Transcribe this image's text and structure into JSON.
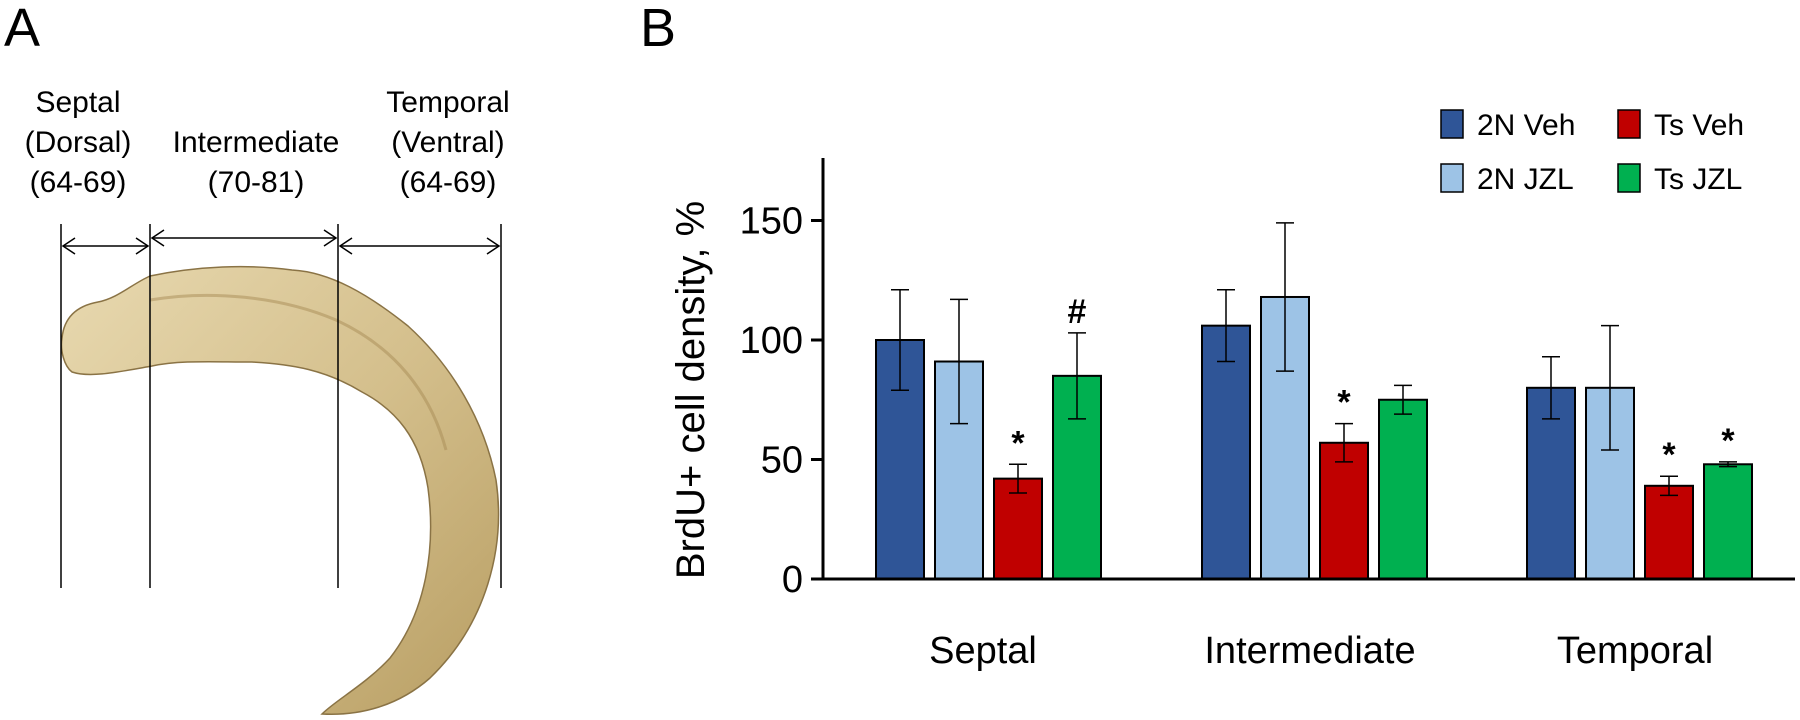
{
  "panel_a": {
    "letter": "A",
    "regions": [
      {
        "lines": [
          "Septal",
          "(Dorsal)",
          "(64-69)"
        ]
      },
      {
        "lines": [
          "Intermediate",
          "(70-81)"
        ]
      },
      {
        "lines": [
          "Temporal",
          "(Ventral)",
          "(64-69)"
        ]
      }
    ]
  },
  "panel_b": {
    "letter": "B"
  },
  "colors": {
    "2N Veh": "#2f5597",
    "2N JZL": "#9dc3e6",
    "Ts Veh": "#c00000",
    "Ts JZL": "#00b050",
    "hippocampus": "#d4c08f"
  },
  "chart_data": {
    "type": "bar",
    "title": "",
    "xlabel": "",
    "ylabel": "BrdU+ cell density, %",
    "ylim": [
      0,
      175
    ],
    "yticks": [
      0,
      50,
      100,
      150
    ],
    "grid": false,
    "legend_position": "top-right",
    "categories": [
      "Septal",
      "Intermediate",
      "Temporal"
    ],
    "series": [
      {
        "name": "2N Veh",
        "values": [
          100,
          106,
          80
        ],
        "errors": [
          21,
          15,
          13
        ],
        "annotations": [
          "",
          "",
          ""
        ]
      },
      {
        "name": "2N JZL",
        "values": [
          91,
          118,
          80
        ],
        "errors": [
          26,
          31,
          26
        ],
        "annotations": [
          "",
          "",
          ""
        ]
      },
      {
        "name": "Ts Veh",
        "values": [
          42,
          57,
          39
        ],
        "errors": [
          6,
          8,
          4
        ],
        "annotations": [
          "*",
          "*",
          "*"
        ]
      },
      {
        "name": "Ts JZL",
        "values": [
          85,
          75,
          48
        ],
        "errors": [
          18,
          6,
          1
        ],
        "annotations": [
          "#",
          "",
          "*"
        ]
      }
    ]
  }
}
